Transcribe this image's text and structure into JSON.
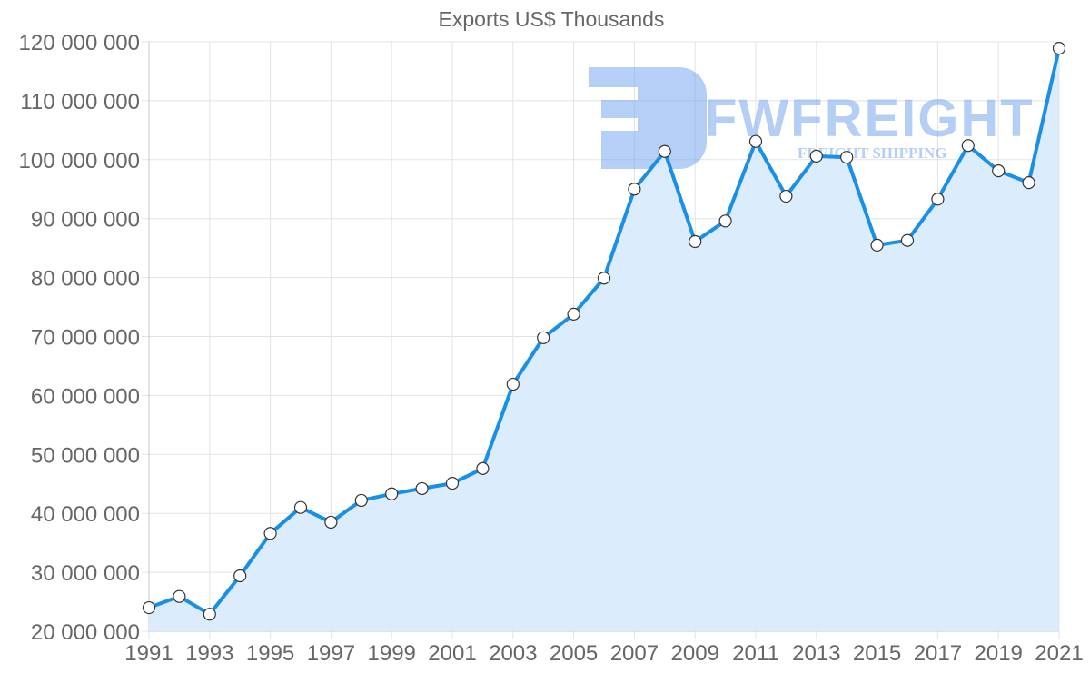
{
  "chart_data": {
    "type": "area",
    "title": "Exports US$ Thousands",
    "xlabel": "",
    "ylabel": "",
    "x": [
      1991,
      1992,
      1993,
      1994,
      1995,
      1996,
      1997,
      1998,
      1999,
      2000,
      2001,
      2002,
      2003,
      2004,
      2005,
      2006,
      2007,
      2008,
      2009,
      2010,
      2011,
      2012,
      2013,
      2014,
      2015,
      2016,
      2017,
      2018,
      2019,
      2020,
      2021
    ],
    "x_tick_labels": [
      "1991",
      "1993",
      "1995",
      "1997",
      "1999",
      "2001",
      "2003",
      "2005",
      "2007",
      "2009",
      "2011",
      "2013",
      "2015",
      "2017",
      "2019",
      "2021"
    ],
    "series": [
      {
        "name": "Exports US$ Thousands",
        "values": [
          24000000,
          25900000,
          22900000,
          29400000,
          36600000,
          41000000,
          38500000,
          42200000,
          43300000,
          44200000,
          45100000,
          47600000,
          61900000,
          69800000,
          73800000,
          79900000,
          95000000,
          101400000,
          86100000,
          89600000,
          103100000,
          93800000,
          100600000,
          100400000,
          85500000,
          86300000,
          93300000,
          102400000,
          98100000,
          96100000,
          118900000
        ],
        "line_color": "#1a8fe8",
        "fill_color": "#d9ecfc",
        "marker_fill": "#ffffff",
        "marker_stroke": "#333333"
      }
    ],
    "ylim": [
      20000000,
      120000000
    ],
    "y_ticks": [
      20000000,
      30000000,
      40000000,
      50000000,
      60000000,
      70000000,
      80000000,
      90000000,
      100000000,
      110000000,
      120000000
    ],
    "y_tick_labels": [
      "20 000 000",
      "30 000 000",
      "40 000 000",
      "50 000 000",
      "60 000 000",
      "70 000 000",
      "80 000 000",
      "90 000 000",
      "100 000 000",
      "110 000 000",
      "120 000 000"
    ],
    "grid": true,
    "legend": "none"
  },
  "watermark": {
    "brand": "FWFREIGHT",
    "tagline": "FREIGHT SHIPPING",
    "color": "#7aa7ee"
  }
}
